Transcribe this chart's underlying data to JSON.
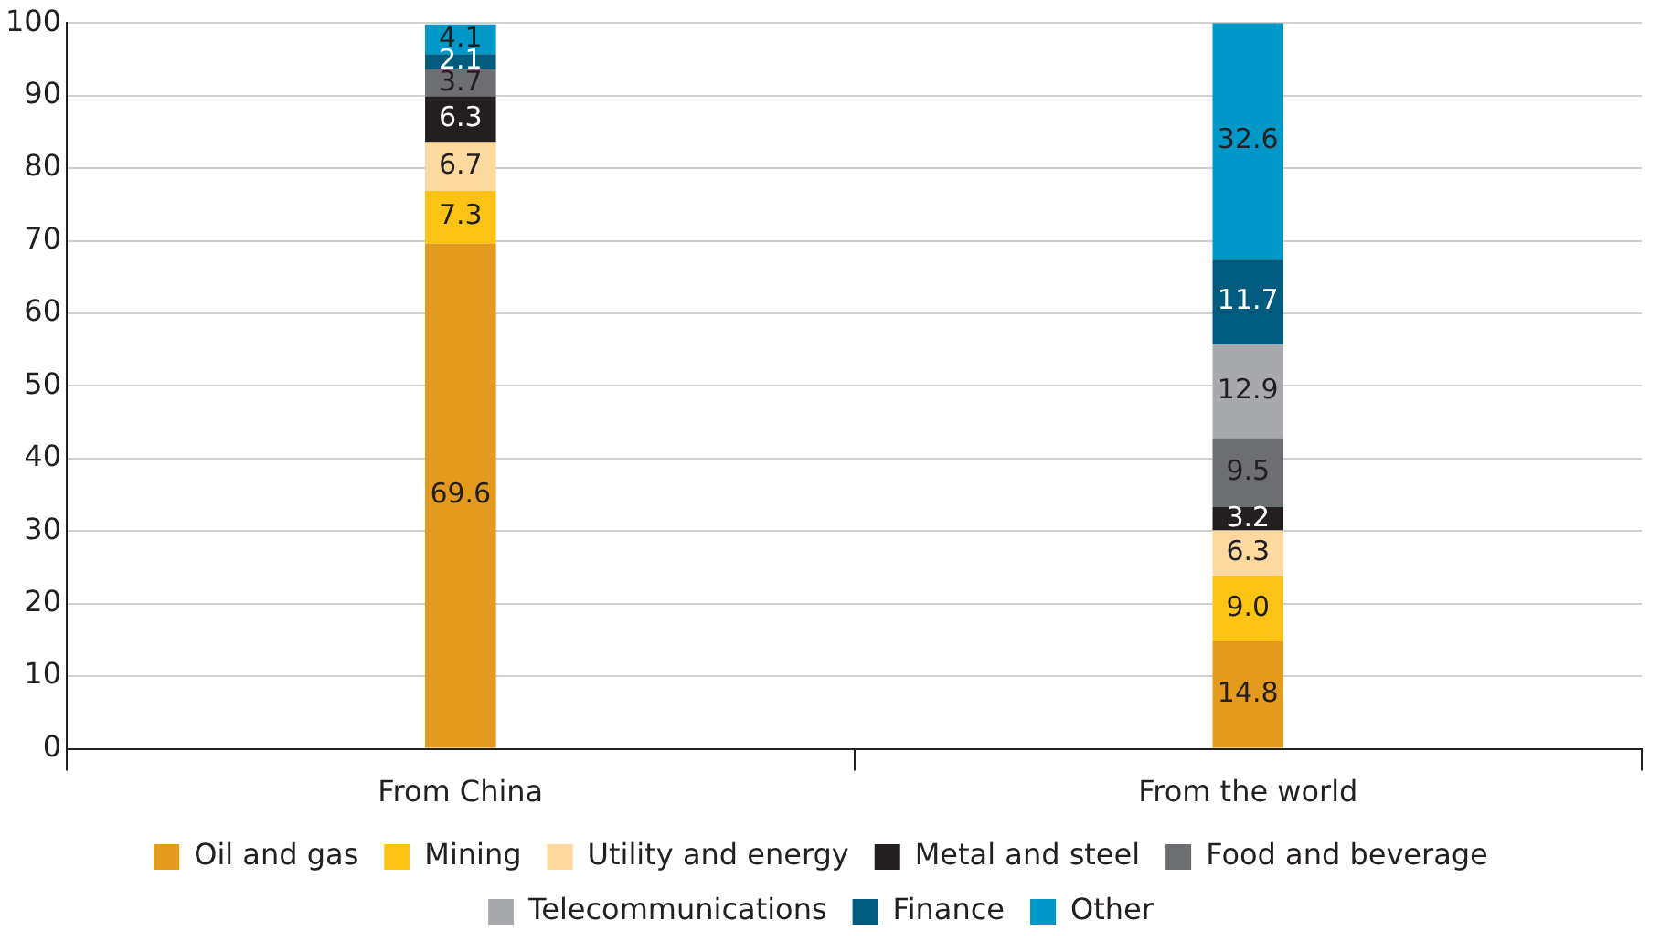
{
  "chart_data": {
    "type": "bar",
    "stacked": true,
    "categories": [
      "From China",
      "From the world"
    ],
    "series": [
      {
        "name": "Oil and gas",
        "color": "#e49a1c",
        "values": [
          69.6,
          14.8
        ],
        "value_labels": [
          "69.6",
          "14.8"
        ]
      },
      {
        "name": "Mining",
        "color": "#fcc214",
        "values": [
          7.3,
          9.0
        ],
        "value_labels": [
          "7.3",
          "9.0"
        ]
      },
      {
        "name": "Utility and energy",
        "color": "#fdd9a0",
        "values": [
          6.7,
          6.3
        ],
        "value_labels": [
          "6.7",
          "6.3"
        ]
      },
      {
        "name": "Metal and steel",
        "color": "#231f20",
        "values": [
          6.3,
          3.2
        ],
        "value_labels": [
          "6.3",
          "3.2"
        ]
      },
      {
        "name": "Food and beverage",
        "color": "#6d6e71",
        "values": [
          3.7,
          9.5
        ],
        "value_labels": [
          "3.7",
          "9.5"
        ]
      },
      {
        "name": "Telecommunications",
        "color": "#a7a9ac",
        "values": [
          null,
          12.9
        ],
        "value_labels": [
          null,
          "12.9"
        ]
      },
      {
        "name": "Finance",
        "color": "#005b7f",
        "values": [
          2.1,
          11.7
        ],
        "value_labels": [
          "2.1",
          "11.7"
        ]
      },
      {
        "name": "Other",
        "color": "#0098c8",
        "values": [
          4.1,
          32.6
        ],
        "value_labels": [
          "4.1",
          "32.6"
        ]
      }
    ],
    "ylim": [
      0,
      100
    ],
    "yticks": [
      0,
      10,
      20,
      30,
      40,
      50,
      60,
      70,
      80,
      90,
      100
    ],
    "grid": "y",
    "legend": "bottom"
  }
}
